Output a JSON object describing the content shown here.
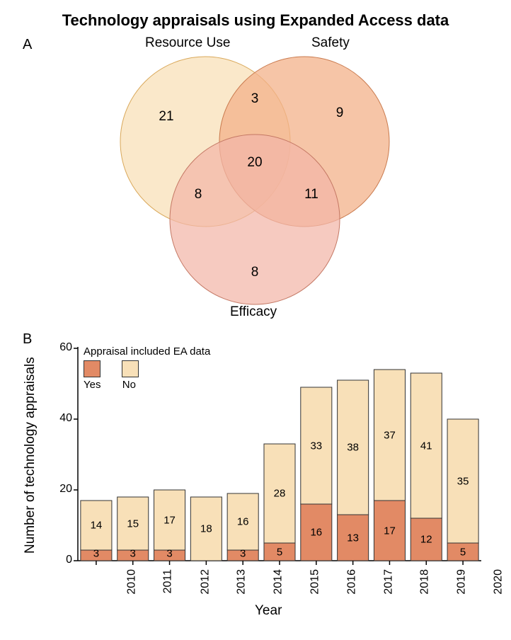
{
  "title": {
    "text": "Technology appraisals using Expanded Access data",
    "fontsize": 22,
    "fontweight": "bold",
    "color": "#000000"
  },
  "panelA": {
    "label": "A",
    "label_fontsize": 20,
    "venn": {
      "circles": {
        "resource_use": {
          "label": "Resource Use",
          "fill": "#f8e0b8",
          "stroke": "#d9a85a",
          "opacity": 0.75
        },
        "safety": {
          "label": "Safety",
          "fill": "#f3b18a",
          "stroke": "#c97a4e",
          "opacity": 0.75
        },
        "efficacy": {
          "label": "Efficacy",
          "fill": "#f2b6a8",
          "stroke": "#c47864",
          "opacity": 0.72
        }
      },
      "values": {
        "resource_only": 21,
        "safety_only": 9,
        "efficacy_only": 8,
        "resource_safety": 3,
        "resource_efficacy": 8,
        "safety_efficacy": 11,
        "all_three": 20
      },
      "label_fontsize": 19,
      "value_fontsize": 19,
      "value_color": "#000000"
    }
  },
  "panelB": {
    "label": "B",
    "label_fontsize": 20,
    "chart": {
      "type": "stacked_bar",
      "ylabel": "Number of technology appraisals",
      "xlabel": "Year",
      "label_fontsize": 19,
      "tick_fontsize": 16,
      "ylim": [
        0,
        60
      ],
      "ytick_step": 20,
      "yticks": [
        0,
        20,
        40,
        60
      ],
      "categories": [
        "2010",
        "2011",
        "2012",
        "2013",
        "2014",
        "2015",
        "2016",
        "2017",
        "2018",
        "2019",
        "2020"
      ],
      "series": {
        "yes": {
          "label": "Yes",
          "color": "#e28a65",
          "border": "#333333",
          "values": [
            3,
            3,
            3,
            0,
            3,
            5,
            16,
            13,
            17,
            12,
            5
          ]
        },
        "no": {
          "label": "No",
          "color": "#f8e0b8",
          "border": "#333333",
          "values": [
            14,
            15,
            17,
            18,
            16,
            28,
            33,
            38,
            37,
            41,
            35
          ]
        }
      },
      "legend_title": "Appraisal included EA data",
      "legend_fontsize": 15,
      "bar_value_fontsize": 15,
      "background": "#ffffff",
      "axis_color": "#000000",
      "bar_width_ratio": 0.85
    }
  }
}
